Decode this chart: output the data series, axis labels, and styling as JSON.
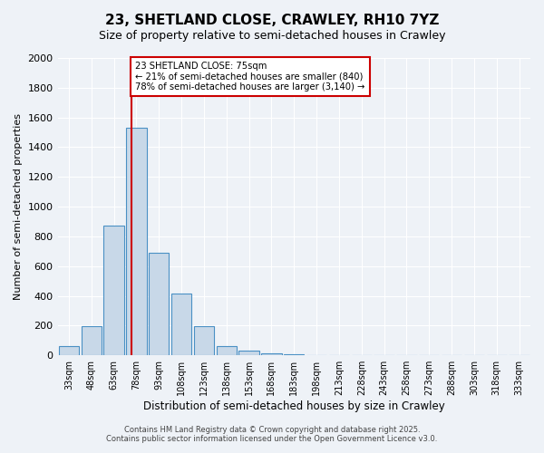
{
  "title1": "23, SHETLAND CLOSE, CRAWLEY, RH10 7YZ",
  "title2": "Size of property relative to semi-detached houses in Crawley",
  "xlabel": "Distribution of semi-detached houses by size in Crawley",
  "ylabel": "Number of semi-detached properties",
  "categories": [
    "33sqm",
    "48sqm",
    "63sqm",
    "78sqm",
    "93sqm",
    "108sqm",
    "123sqm",
    "138sqm",
    "153sqm",
    "168sqm",
    "183sqm",
    "198sqm",
    "213sqm",
    "228sqm",
    "243sqm",
    "258sqm",
    "273sqm",
    "288sqm",
    "303sqm",
    "318sqm",
    "333sqm"
  ],
  "values": [
    65,
    195,
    875,
    1530,
    690,
    415,
    195,
    60,
    30,
    15,
    10,
    0,
    0,
    0,
    0,
    0,
    0,
    0,
    0,
    0,
    0
  ],
  "bar_color": "#c8d8e8",
  "bar_edge_color": "#4a90c4",
  "annotation_title": "23 SHETLAND CLOSE: 75sqm",
  "annotation_line1": "← 21% of semi-detached houses are smaller (840)",
  "annotation_line2": "78% of semi-detached houses are larger (3,140) →",
  "annotation_box_color": "#cc0000",
  "vline_color": "#cc0000",
  "ylim": [
    0,
    2000
  ],
  "yticks": [
    0,
    200,
    400,
    600,
    800,
    1000,
    1200,
    1400,
    1600,
    1800,
    2000
  ],
  "footnote1": "Contains HM Land Registry data © Crown copyright and database right 2025.",
  "footnote2": "Contains public sector information licensed under the Open Government Licence v3.0.",
  "bg_color": "#eef2f7",
  "grid_color": "#ffffff"
}
